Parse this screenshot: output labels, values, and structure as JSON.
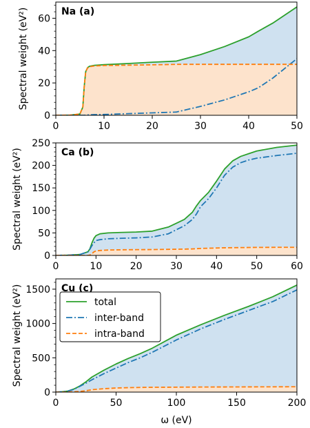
{
  "xlabel": "ω (eV)",
  "colors": {
    "total": "#2ca02c",
    "inter": "#1f77b4",
    "intra": "#ff7f0e",
    "inter_fill": "#cfe1f0",
    "intra_fill": "#fde3cc"
  },
  "legend": {
    "placement": "upper-left",
    "panel": 2,
    "entries": [
      {
        "label": "total",
        "style": "solid",
        "color": "#2ca02c"
      },
      {
        "label": "inter-band",
        "style": "dashdot",
        "color": "#1f77b4"
      },
      {
        "label": "intra-band",
        "style": "dashed",
        "color": "#ff7f0e"
      }
    ]
  },
  "chart_data": [
    {
      "type": "area",
      "title": "Na (a)",
      "ylabel": "Spectral weight (eV²)",
      "xlim": [
        0,
        50
      ],
      "ylim": [
        0,
        70
      ],
      "xticks": [
        0,
        10,
        20,
        30,
        40,
        50
      ],
      "yticks": [
        0,
        20,
        40,
        60
      ],
      "x": [
        0,
        3,
        5,
        5.6,
        5.9,
        6.2,
        6.6,
        7,
        8,
        10,
        15,
        20,
        25,
        30,
        35,
        40,
        42,
        45,
        50
      ],
      "series": [
        {
          "name": "total",
          "values": [
            0,
            0.1,
            0.8,
            5,
            18,
            27,
            29.5,
            30.3,
            30.9,
            31.3,
            32.0,
            32.8,
            33.5,
            37.5,
            42.5,
            48.5,
            52,
            57,
            67
          ]
        },
        {
          "name": "inter-band",
          "values": [
            0,
            0,
            0,
            0,
            0,
            0.1,
            0.2,
            0.3,
            0.4,
            0.5,
            1.0,
            1.5,
            2.0,
            5.5,
            9.5,
            14.5,
            17,
            23,
            35
          ]
        },
        {
          "name": "intra-band",
          "values": [
            0,
            0.1,
            0.8,
            5,
            18,
            27,
            29.3,
            30.0,
            30.5,
            30.8,
            31.0,
            31.2,
            31.5,
            31.5,
            31.5,
            31.5,
            31.5,
            31.5,
            31.5
          ]
        }
      ]
    },
    {
      "type": "area",
      "title": "Ca (b)",
      "ylabel": "Spectral weight (eV²)",
      "xlim": [
        0,
        60
      ],
      "ylim": [
        0,
        250
      ],
      "xticks": [
        0,
        10,
        20,
        30,
        40,
        50,
        60
      ],
      "yticks": [
        0,
        50,
        100,
        150,
        200,
        250
      ],
      "x": [
        0,
        3,
        6,
        8,
        8.5,
        9,
        9.5,
        10,
        11,
        13,
        16,
        20,
        24,
        28,
        32,
        34,
        35,
        36,
        38,
        40,
        42,
        44,
        46,
        48,
        50,
        55,
        60
      ],
      "series": [
        {
          "name": "total",
          "values": [
            0,
            0.5,
            2,
            8,
            15,
            28,
            38,
            44,
            48,
            50,
            51,
            52,
            54,
            63,
            80,
            96,
            110,
            122,
            140,
            165,
            192,
            210,
            220,
            226,
            232,
            240,
            245
          ]
        },
        {
          "name": "inter-band",
          "values": [
            0,
            0.5,
            2,
            8,
            14,
            22,
            28,
            33,
            35,
            37,
            38,
            39,
            41,
            48,
            66,
            80,
            92,
            108,
            126,
            150,
            178,
            196,
            206,
            212,
            216,
            222,
            227
          ]
        },
        {
          "name": "intra-band",
          "values": [
            0,
            0,
            0,
            0,
            1,
            4,
            8,
            10,
            11,
            12,
            12.5,
            12.8,
            13,
            13.5,
            14,
            14.5,
            15,
            15.5,
            16,
            16.5,
            17,
            17.2,
            17.4,
            17.6,
            17.8,
            18,
            18
          ]
        }
      ]
    },
    {
      "type": "area",
      "title": "Cu (c)",
      "ylabel": "Spectral weight (eV²)",
      "xlim": [
        0,
        200
      ],
      "ylim": [
        0,
        1650
      ],
      "xticks": [
        0,
        50,
        100,
        150,
        200
      ],
      "yticks": [
        0,
        500,
        1000,
        1500
      ],
      "x": [
        0,
        5,
        10,
        15,
        20,
        25,
        30,
        40,
        50,
        60,
        70,
        80,
        100,
        120,
        140,
        160,
        180,
        200
      ],
      "series": [
        {
          "name": "total",
          "values": [
            0,
            5,
            15,
            45,
            90,
            150,
            220,
            320,
            410,
            490,
            560,
            640,
            830,
            980,
            1120,
            1250,
            1390,
            1560
          ]
        },
        {
          "name": "inter-band",
          "values": [
            0,
            5,
            15,
            40,
            85,
            130,
            180,
            270,
            350,
            430,
            500,
            580,
            760,
            920,
            1060,
            1190,
            1320,
            1490
          ]
        },
        {
          "name": "intra-band",
          "values": [
            0,
            0,
            2,
            5,
            10,
            20,
            35,
            50,
            60,
            65,
            68,
            70,
            72,
            74,
            75,
            76,
            77,
            78
          ]
        }
      ]
    }
  ]
}
